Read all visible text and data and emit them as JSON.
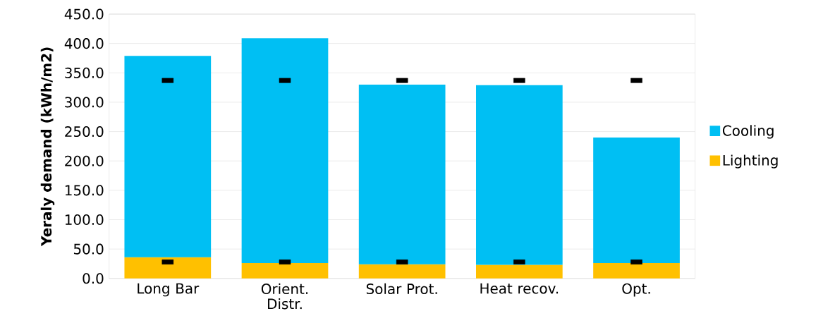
{
  "chart_data": {
    "type": "bar",
    "stacked": true,
    "ylabel": "Yeraly demand (kWh/m2)",
    "categories": [
      "Long Bar",
      "Orient. Distr.",
      "Solar Prot.",
      "Heat recov.",
      "Opt."
    ],
    "series": [
      {
        "name": "Lighting",
        "color": "#ffc000",
        "values": [
          36,
          26,
          24,
          23,
          26
        ]
      },
      {
        "name": "Cooling",
        "color": "#00bff3",
        "values": [
          343,
          383,
          306,
          306,
          214
        ]
      },
      {
        "type": "scatter",
        "color": "#000000",
        "x": [
          "Long Bar",
          "Orient. Distr.",
          "Solar Prot.",
          "Heat recov.",
          "Opt."
        ],
        "values": [
          337,
          337,
          337,
          337,
          337
        ]
      },
      {
        "type": "scatter",
        "color": "#000000",
        "x": [
          "Long Bar",
          "Orient. Distr.",
          "Solar Prot.",
          "Heat recov.",
          "Opt."
        ],
        "values": [
          28,
          28,
          28,
          28,
          28
        ]
      }
    ],
    "ylim": [
      0,
      450
    ],
    "yticks": [
      {
        "value": 0,
        "label": "0.0"
      },
      {
        "value": 50,
        "label": "50.0"
      },
      {
        "value": 100,
        "label": "100.0"
      },
      {
        "value": 150,
        "label": "150.0"
      },
      {
        "value": 200,
        "label": "200.0"
      },
      {
        "value": 250,
        "label": "250.0"
      },
      {
        "value": 300,
        "label": "300.0"
      },
      {
        "value": 350,
        "label": "350.0"
      },
      {
        "value": 400,
        "label": "400.0"
      },
      {
        "value": 450,
        "label": "450.0"
      }
    ],
    "grid": "y",
    "legend": "right"
  }
}
